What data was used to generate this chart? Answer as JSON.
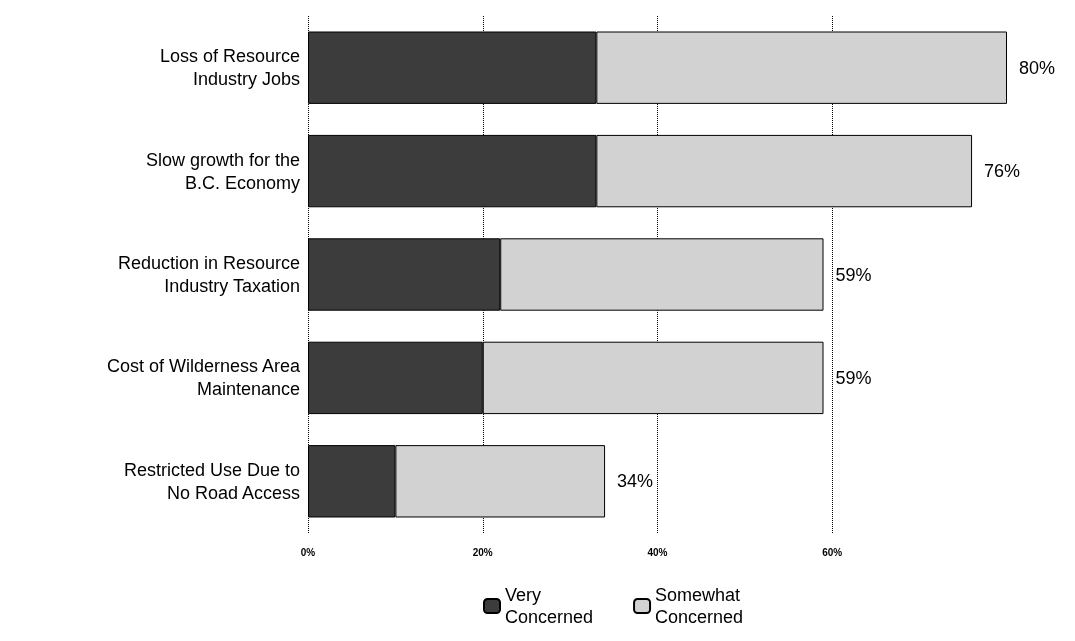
{
  "chart_data": {
    "type": "bar",
    "orientation": "horizontal",
    "stacked": true,
    "categories": [
      "Loss of Resource\nIndustry Jobs",
      "Slow growth for the\nB.C. Economy",
      "Reduction in Resource\nIndustry Taxation",
      "Cost of Wilderness Area\nMaintenance",
      "Restricted Use Due to\nNo Road Access"
    ],
    "series": [
      {
        "name": "Very Concerned",
        "color": "#3c3c3c",
        "values": [
          33,
          33,
          22,
          20,
          10
        ]
      },
      {
        "name": "Somewhat Concerned",
        "color": "#d2d2d2",
        "values": [
          47,
          43,
          37,
          39,
          24
        ]
      }
    ],
    "totals": [
      "80%",
      "76%",
      "59%",
      "59%",
      "34%"
    ],
    "xlim": [
      0,
      80
    ],
    "xticks": [
      {
        "value": 0,
        "label": "0%"
      },
      {
        "value": 20,
        "label": "20%"
      },
      {
        "value": 40,
        "label": "40%"
      },
      {
        "value": 60,
        "label": "60%"
      }
    ],
    "grid": "x",
    "legend": "bottom"
  }
}
